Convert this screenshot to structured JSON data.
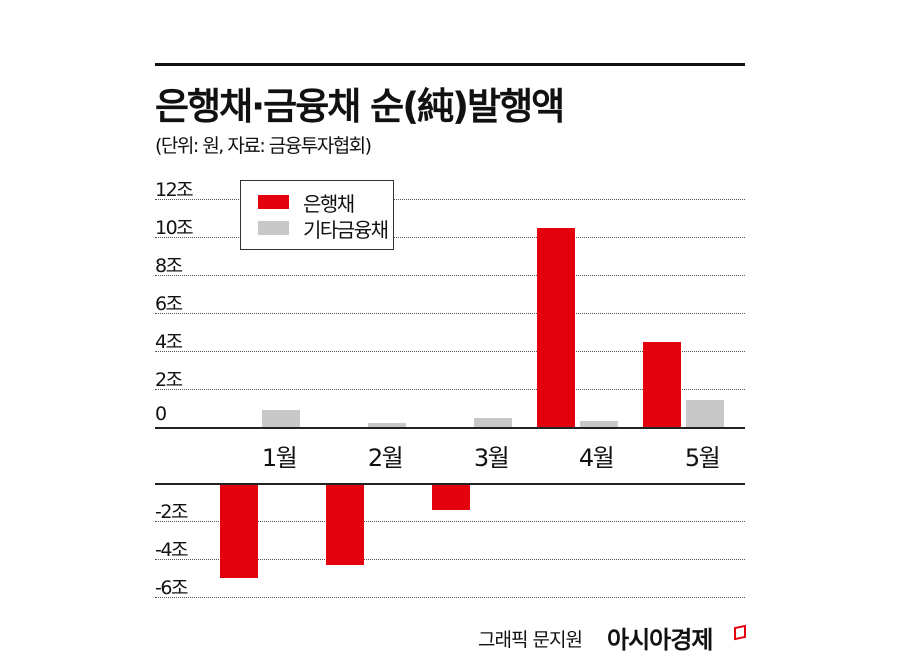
{
  "header": {
    "title": "은행채·금융채 순(純)발행액",
    "subtitle": "(단위: 원, 자료: 금융투자협회)"
  },
  "legend": {
    "items": [
      {
        "label": "은행채",
        "color": "#e3000f"
      },
      {
        "label": "기타금융채",
        "color": "#c8c8c8"
      }
    ]
  },
  "axis": {
    "positive_ticks": [
      "12조",
      "10조",
      "8조",
      "6조",
      "4조",
      "2조",
      "0"
    ],
    "negative_ticks": [
      "-2조",
      "-4조",
      "-6조"
    ]
  },
  "months": [
    "1월",
    "2월",
    "3월",
    "4월",
    "5월"
  ],
  "footer": {
    "credit": "그래픽 문지원",
    "brand": "아시아경제"
  },
  "chart_data": {
    "type": "bar",
    "title": "은행채·금융채 순(純)발행액",
    "subtitle": "(단위: 원, 자료: 금융투자협회)",
    "xlabel": "",
    "ylabel": "조 원",
    "categories": [
      "1월",
      "2월",
      "3월",
      "4월",
      "5월"
    ],
    "series": [
      {
        "name": "은행채",
        "color": "#e3000f",
        "values": [
          -4.9,
          -4.2,
          -1.3,
          10.5,
          4.5
        ]
      },
      {
        "name": "기타금융채",
        "color": "#c8c8c8",
        "values": [
          0.9,
          0.2,
          0.5,
          0.3,
          1.4
        ]
      }
    ],
    "ylim": [
      -6,
      12
    ],
    "yticks": [
      -6,
      -4,
      -2,
      0,
      2,
      4,
      6,
      8,
      10,
      12
    ],
    "grid": true,
    "legend_position": "top-left"
  }
}
